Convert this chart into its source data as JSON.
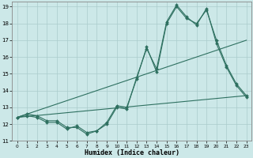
{
  "xlabel": "Humidex (Indice chaleur)",
  "background_color": "#cce8e8",
  "grid_color": "#aacccc",
  "line_color": "#2e7060",
  "xlim": [
    -0.5,
    23.5
  ],
  "ylim": [
    11,
    19.3
  ],
  "xticks": [
    0,
    1,
    2,
    3,
    4,
    5,
    6,
    7,
    8,
    9,
    10,
    11,
    12,
    13,
    14,
    15,
    16,
    17,
    18,
    19,
    20,
    21,
    22,
    23
  ],
  "yticks": [
    11,
    12,
    13,
    14,
    15,
    16,
    17,
    18,
    19
  ],
  "series": [
    {
      "x": [
        0,
        1,
        2,
        3,
        4,
        5,
        6,
        7,
        8,
        9,
        10,
        11,
        12,
        13,
        14,
        15,
        16,
        17,
        18,
        19,
        20,
        21,
        22,
        23
      ],
      "y": [
        12.4,
        12.6,
        12.5,
        12.2,
        12.2,
        11.8,
        11.8,
        11.4,
        11.6,
        12.1,
        13.1,
        13.0,
        14.7,
        16.6,
        15.1,
        18.0,
        19.0,
        18.3,
        18.0,
        18.8,
        17.0,
        15.5,
        14.4,
        13.7
      ],
      "marker": true
    },
    {
      "x": [
        0,
        1,
        2,
        3,
        4,
        5,
        6,
        7,
        8,
        9,
        10,
        11,
        12,
        13,
        14,
        15,
        16,
        17,
        18,
        19,
        20,
        21,
        22,
        23
      ],
      "y": [
        12.4,
        12.5,
        12.4,
        12.1,
        12.1,
        11.7,
        11.9,
        11.5,
        11.6,
        12.0,
        13.0,
        12.9,
        14.8,
        16.5,
        15.3,
        18.1,
        19.1,
        18.4,
        17.9,
        18.9,
        16.8,
        15.4,
        14.3,
        13.6
      ],
      "marker": true
    },
    {
      "x": [
        0,
        23
      ],
      "y": [
        12.4,
        17.0
      ],
      "marker": false
    },
    {
      "x": [
        0,
        23
      ],
      "y": [
        12.4,
        13.7
      ],
      "marker": false
    }
  ]
}
